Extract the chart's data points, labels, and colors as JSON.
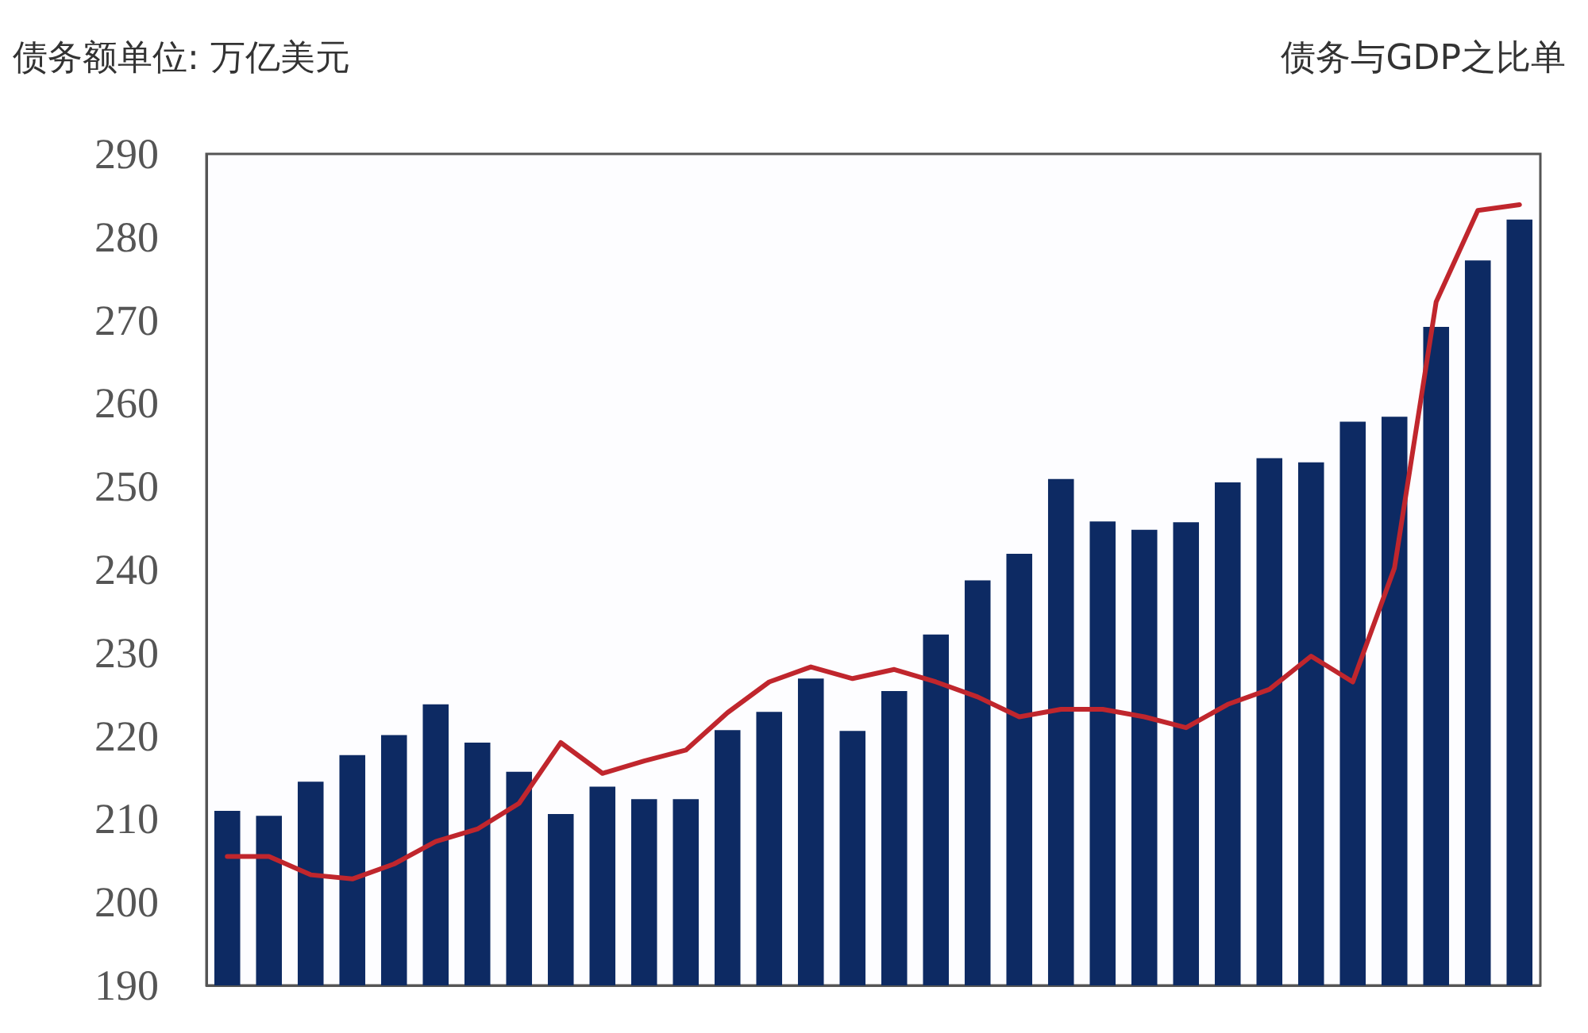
{
  "chart_data": {
    "type": "bar",
    "ylabel": "债务额单位: 万亿美元",
    "y2label": "债务与GDP之比单",
    "categories": [
      null,
      null,
      null,
      null,
      null,
      null,
      null,
      null,
      null,
      null,
      null,
      null,
      null,
      null,
      null,
      null,
      null,
      null,
      null,
      null,
      null,
      null,
      null,
      null,
      null,
      null,
      null,
      null,
      null,
      null,
      null,
      null
    ],
    "series": [
      {
        "color": "#0d2a63",
        "values": [
          211,
          210.4,
          214.5,
          217.7,
          220.1,
          223.8,
          219.2,
          215.7,
          210.6,
          213.9,
          212.4,
          212.4,
          220.7,
          222.9,
          226.9,
          220.6,
          225.4,
          232.2,
          238.7,
          241.9,
          250.9,
          245.8,
          244.8,
          245.7,
          250.5,
          253.4,
          252.9,
          257.8,
          258.4,
          269.2,
          277.2,
          282.1
        ]
      },
      {
        "type": "line",
        "color": "#c0262d",
        "values": [
          205.5,
          205.5,
          203.3,
          202.8,
          204.6,
          207.3,
          208.8,
          211.9,
          219.2,
          215.5,
          217,
          218.3,
          222.8,
          226.5,
          228.3,
          226.9,
          228,
          226.5,
          224.7,
          222.3,
          223.2,
          223.2,
          222.3,
          221,
          223.8,
          225.6,
          229.6,
          226.5,
          240.2,
          272.2,
          283.2,
          283.9
        ]
      }
    ],
    "ylim": [
      190,
      290
    ],
    "yticks": [
      190,
      200,
      210,
      220,
      230,
      240,
      250,
      260,
      270,
      280,
      290
    ],
    "grid": false,
    "marker": "none",
    "line_style": "solid"
  }
}
